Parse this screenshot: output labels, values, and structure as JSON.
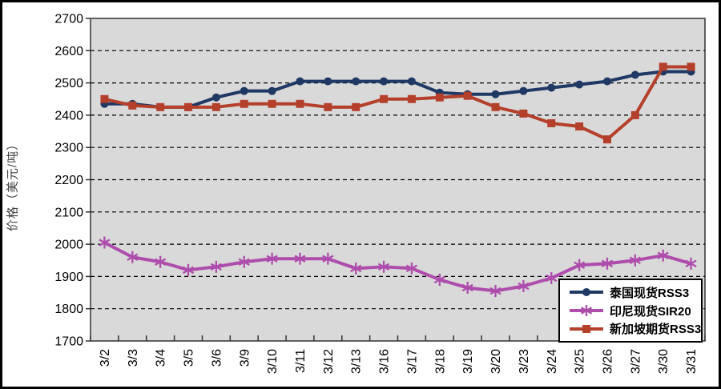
{
  "chart_data": {
    "type": "line",
    "title": "",
    "ylabel": "价格（美元/吨）",
    "xlabel": "",
    "ylim": [
      1700,
      2700
    ],
    "ytick_step": 100,
    "grid": "horizontal dashed black lines on gray plot background",
    "plot_bg_color": "#D9D9D9",
    "legend_position": "inside bottom-right",
    "categories": [
      "3/2",
      "3/3",
      "3/4",
      "3/5",
      "3/6",
      "3/9",
      "3/10",
      "3/11",
      "3/12",
      "3/13",
      "3/16",
      "3/17",
      "3/18",
      "3/19",
      "3/20",
      "3/23",
      "3/24",
      "3/25",
      "3/26",
      "3/27",
      "3/30",
      "3/31"
    ],
    "series": [
      {
        "name": "泰国现货RSS3",
        "color": "#1F3864",
        "marker": "circle",
        "values": [
          2435,
          2435,
          2425,
          2425,
          2455,
          2475,
          2475,
          2505,
          2505,
          2505,
          2505,
          2505,
          2470,
          2465,
          2465,
          2475,
          2485,
          2495,
          2505,
          2525,
          2535,
          2535
        ]
      },
      {
        "name": "印尼现货SIR20",
        "color": "#AE4DAC",
        "marker": "asterisk",
        "values": [
          2005,
          1960,
          1945,
          1920,
          1930,
          1945,
          1955,
          1955,
          1955,
          1925,
          1930,
          1925,
          1890,
          1865,
          1855,
          1870,
          1895,
          1935,
          1940,
          1950,
          1965,
          1940
        ]
      },
      {
        "name": "新加坡期货RSS3",
        "color": "#B4402B",
        "marker": "square",
        "values": [
          2450,
          2430,
          2425,
          2425,
          2425,
          2435,
          2435,
          2435,
          2425,
          2425,
          2450,
          2450,
          2455,
          2460,
          2425,
          2405,
          2375,
          2365,
          2325,
          2400,
          2550,
          2550
        ]
      }
    ]
  }
}
